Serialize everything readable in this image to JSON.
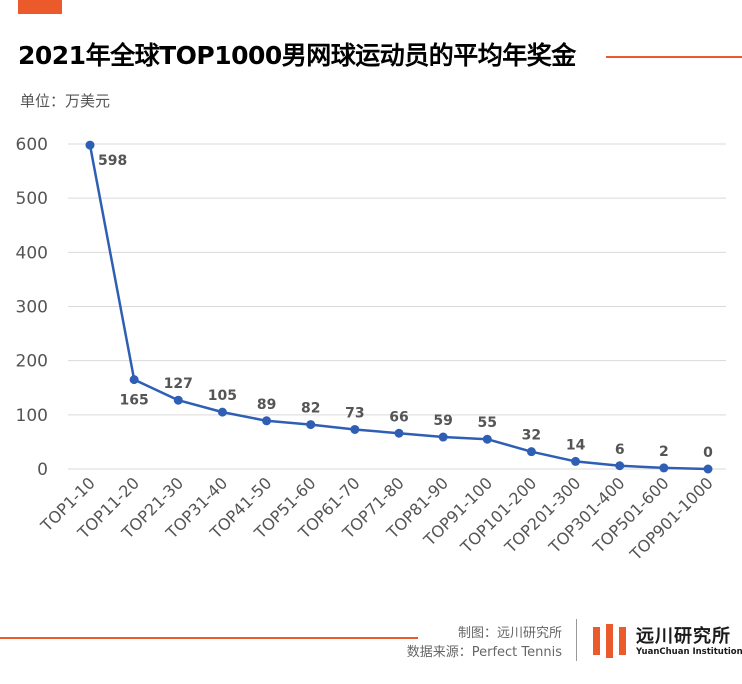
{
  "header": {
    "title": "2021年全球TOP1000男网球运动员的平均年奖金",
    "unit_label": "单位：万美元"
  },
  "footer": {
    "credit_maker": "制图：远川研究所",
    "credit_source": "数据来源：Perfect Tennis",
    "logo_name": "远川研究所",
    "logo_en": "YuanChuan Institution"
  },
  "colors": {
    "accent": "#ea5a2a",
    "line": "#2f5fb5",
    "gridline": "#d9d9d9",
    "text": "#555555"
  },
  "chart_data": {
    "type": "line",
    "categories": [
      "TOP1-10",
      "TOP11-20",
      "TOP21-30",
      "TOP31-40",
      "TOP41-50",
      "TOP51-60",
      "TOP61-70",
      "TOP71-80",
      "TOP81-90",
      "TOP91-100",
      "TOP101-200",
      "TOP201-300",
      "TOP301-400",
      "TOP501-600",
      "TOP901-1000"
    ],
    "values": [
      598,
      165,
      127,
      105,
      89,
      82,
      73,
      66,
      59,
      55,
      32,
      14,
      6,
      2,
      0
    ],
    "ylim": [
      0,
      600
    ],
    "yticks": [
      0,
      100,
      200,
      300,
      400,
      500,
      600
    ],
    "grid": true,
    "legend": "none"
  }
}
